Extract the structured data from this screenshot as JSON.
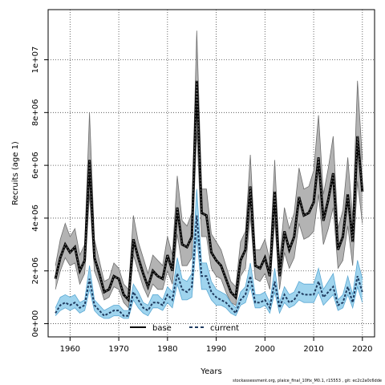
{
  "chart_data": {
    "type": "line",
    "xlabel": "Years",
    "ylabel": "Recruits (age 1)",
    "xlim": [
      1955.5,
      2022.5
    ],
    "ylim": [
      -500000,
      11900000
    ],
    "xticks": [
      1960,
      1970,
      1980,
      1990,
      2000,
      2010,
      2020
    ],
    "yticks": [
      0,
      2000000,
      4000000,
      6000000,
      8000000,
      10000000
    ],
    "ytick_labels": [
      "0e+00",
      "2e+06",
      "4e+06",
      "6e+06",
      "8e+06",
      "1e+07"
    ],
    "grid": true,
    "legend_position": "bottom-center",
    "x": [
      1957,
      1958,
      1959,
      1960,
      1961,
      1962,
      1963,
      1964,
      1965,
      1966,
      1967,
      1968,
      1969,
      1970,
      1971,
      1972,
      1973,
      1974,
      1975,
      1976,
      1977,
      1978,
      1979,
      1980,
      1981,
      1982,
      1983,
      1984,
      1985,
      1986,
      1987,
      1988,
      1989,
      1990,
      1991,
      1992,
      1993,
      1994,
      1995,
      1996,
      1997,
      1998,
      1999,
      2000,
      2001,
      2002,
      2003,
      2004,
      2005,
      2006,
      2007,
      2008,
      2009,
      2010,
      2011,
      2012,
      2013,
      2014,
      2015,
      2016,
      2017,
      2018,
      2019,
      2020
    ],
    "series": [
      {
        "name": "base",
        "color": "#000000",
        "band_color": "#b3b3b3",
        "values": [
          1700000,
          2500000,
          3000000,
          2700000,
          2900000,
          2000000,
          2400000,
          6200000,
          2500000,
          1900000,
          1200000,
          1300000,
          1800000,
          1700000,
          1100000,
          900000,
          3200000,
          2500000,
          1900000,
          1400000,
          2000000,
          1800000,
          1700000,
          2600000,
          2000000,
          4400000,
          3000000,
          2900000,
          3300000,
          9200000,
          4200000,
          4100000,
          2700000,
          2400000,
          2200000,
          1700000,
          1200000,
          1000000,
          2400000,
          2800000,
          5200000,
          2200000,
          2100000,
          2500000,
          1800000,
          5000000,
          1800000,
          3500000,
          2800000,
          3300000,
          4800000,
          4100000,
          4200000,
          4600000,
          6300000,
          3900000,
          4700000,
          5700000,
          2800000,
          3300000,
          4900000,
          3100000,
          7100000,
          5000000
        ],
        "lower": [
          1300000,
          2000000,
          2500000,
          2200000,
          2300000,
          1500000,
          1900000,
          4900000,
          2000000,
          1500000,
          900000,
          1000000,
          1400000,
          1300000,
          800000,
          600000,
          2600000,
          2000000,
          1400000,
          1000000,
          1500000,
          1300000,
          1300000,
          2000000,
          1500000,
          3400000,
          2200000,
          2200000,
          2500000,
          7300000,
          3300000,
          3300000,
          2100000,
          1800000,
          1700000,
          1200000,
          800000,
          700000,
          1800000,
          2100000,
          4100000,
          1700000,
          1600000,
          1900000,
          1300000,
          3900000,
          1300000,
          2700000,
          2100000,
          2500000,
          3800000,
          3200000,
          3300000,
          3500000,
          4900000,
          3000000,
          3600000,
          4400000,
          2100000,
          2400000,
          3700000,
          2200000,
          5400000,
          3800000
        ],
        "upper": [
          2200000,
          3200000,
          3800000,
          3300000,
          3600000,
          2600000,
          3000000,
          8000000,
          3200000,
          2400000,
          1600000,
          1700000,
          2300000,
          2100000,
          1500000,
          1300000,
          4100000,
          3100000,
          2500000,
          1900000,
          2600000,
          2400000,
          2200000,
          3300000,
          2600000,
          5600000,
          3900000,
          3700000,
          4200000,
          11100000,
          5100000,
          5100000,
          3400000,
          3100000,
          2800000,
          2200000,
          1600000,
          1400000,
          3100000,
          3500000,
          6400000,
          2800000,
          2800000,
          3200000,
          2400000,
          6200000,
          2400000,
          4400000,
          3600000,
          4200000,
          5900000,
          5100000,
          5200000,
          5800000,
          7900000,
          4900000,
          5900000,
          7100000,
          3600000,
          4300000,
          6300000,
          4000000,
          9200000,
          6200000
        ]
      },
      {
        "name": "current",
        "color": "#1e3a5f",
        "band_color": "#9fd4ee",
        "values": [
          400000,
          700000,
          800000,
          700000,
          800000,
          600000,
          700000,
          1700000,
          700000,
          500000,
          300000,
          400000,
          500000,
          500000,
          300000,
          300000,
          1200000,
          900000,
          600000,
          500000,
          800000,
          800000,
          700000,
          1100000,
          900000,
          1900000,
          1300000,
          1200000,
          1400000,
          4100000,
          1800000,
          1800000,
          1200000,
          1000000,
          900000,
          800000,
          600000,
          400000,
          900000,
          1100000,
          1800000,
          800000,
          800000,
          900000,
          600000,
          1600000,
          600000,
          1100000,
          800000,
          900000,
          1200000,
          1100000,
          1100000,
          1100000,
          1600000,
          1000000,
          1200000,
          1400000,
          700000,
          800000,
          1400000,
          800000,
          1800000,
          1200000
        ],
        "lower": [
          300000,
          500000,
          600000,
          500000,
          600000,
          400000,
          500000,
          1300000,
          500000,
          300000,
          200000,
          200000,
          300000,
          300000,
          200000,
          200000,
          900000,
          600000,
          400000,
          300000,
          600000,
          600000,
          500000,
          800000,
          600000,
          1500000,
          900000,
          900000,
          1000000,
          3300000,
          1300000,
          1300000,
          900000,
          700000,
          700000,
          600000,
          400000,
          300000,
          700000,
          800000,
          1400000,
          600000,
          600000,
          700000,
          400000,
          1200000,
          400000,
          800000,
          600000,
          700000,
          900000,
          800000,
          800000,
          800000,
          1200000,
          700000,
          900000,
          1100000,
          500000,
          600000,
          1100000,
          600000,
          1400000,
          800000
        ],
        "upper": [
          600000,
          1000000,
          1100000,
          1000000,
          1100000,
          800000,
          900000,
          2200000,
          900000,
          700000,
          500000,
          600000,
          700000,
          700000,
          500000,
          500000,
          1500000,
          1200000,
          800000,
          700000,
          1100000,
          1100000,
          900000,
          1400000,
          1200000,
          2500000,
          1700000,
          1600000,
          1900000,
          5100000,
          2300000,
          2300000,
          1600000,
          1300000,
          1200000,
          1100000,
          800000,
          600000,
          1200000,
          1400000,
          2300000,
          1100000,
          1100000,
          1200000,
          800000,
          2100000,
          800000,
          1400000,
          1100000,
          1200000,
          1600000,
          1500000,
          1500000,
          1500000,
          2100000,
          1300000,
          1600000,
          1900000,
          900000,
          1100000,
          1800000,
          1100000,
          2400000,
          1700000
        ]
      }
    ]
  },
  "legend": {
    "items": [
      {
        "label": "base",
        "color": "#000000",
        "style": "solid"
      },
      {
        "label": "current",
        "color": "#1e3a5f",
        "style": "dashed"
      }
    ]
  },
  "footer_text": "stockassessment.org, plaice_final_10fix_M0.1, r15553 , git: ec2c2a0c6dde"
}
